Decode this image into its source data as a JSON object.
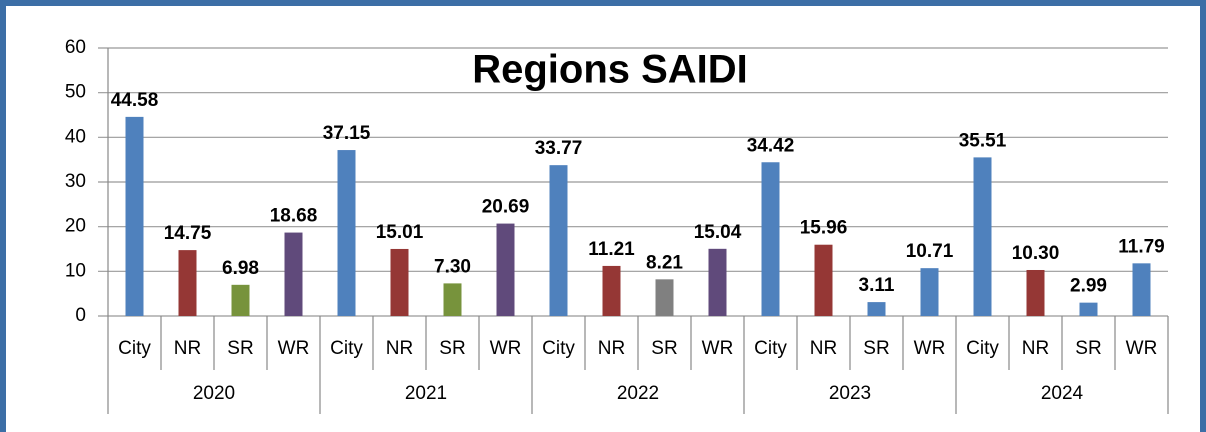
{
  "chart_data": {
    "type": "bar",
    "title": "Regions  SAIDI",
    "categories": [
      "City",
      "NR",
      "SR",
      "WR",
      "City",
      "NR",
      "SR",
      "WR",
      "City",
      "NR",
      "SR",
      "WR",
      "City",
      "NR",
      "SR",
      "WR",
      "City",
      "NR",
      "SR",
      "WR"
    ],
    "category_groups": [
      "2020",
      "2021",
      "2022",
      "2023",
      "2024"
    ],
    "values": [
      44.58,
      14.75,
      6.98,
      18.68,
      37.15,
      15.01,
      7.3,
      20.69,
      33.77,
      11.21,
      8.21,
      15.04,
      34.42,
      15.96,
      3.11,
      10.71,
      35.51,
      10.3,
      2.99,
      11.79
    ],
    "value_labels": [
      "44.58",
      "14.75",
      "6.98",
      "18.68",
      "37.15",
      "15.01",
      "7.30",
      "20.69",
      "33.77",
      "11.21",
      "8.21",
      "15.04",
      "34.42",
      "15.96",
      "3.11",
      "10.71",
      "35.51",
      "10.30",
      "2.99",
      "11.79"
    ],
    "colors": [
      "#4f81bd",
      "#953735",
      "#77933c",
      "#604a7b",
      "#4f81bd",
      "#953735",
      "#77933c",
      "#604a7b",
      "#4f81bd",
      "#953735",
      "#808080",
      "#604a7b",
      "#4f81bd",
      "#953735",
      "#4f81bd",
      "#4f81bd",
      "#4f81bd",
      "#953735",
      "#4f81bd",
      "#4f81bd"
    ],
    "ylim": [
      0,
      60
    ],
    "yticks": [
      0,
      10,
      20,
      30,
      40,
      50,
      60
    ],
    "grid": true
  }
}
